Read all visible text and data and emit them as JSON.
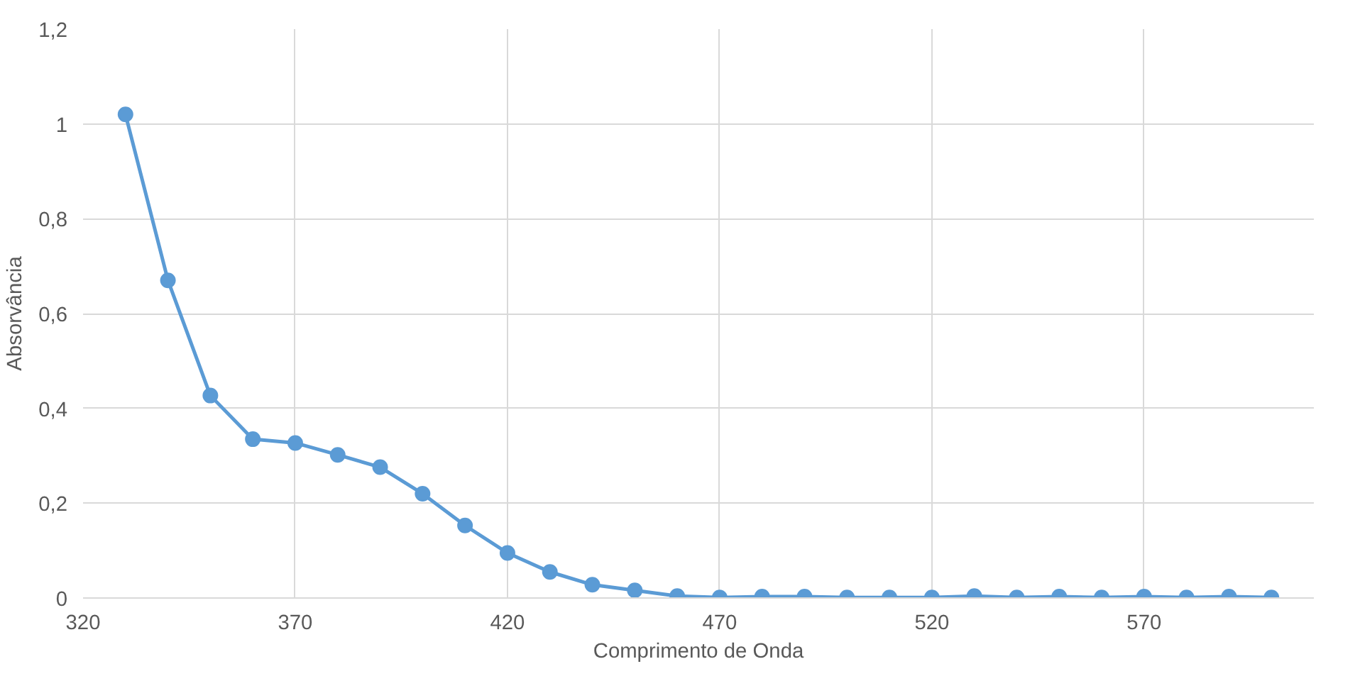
{
  "chart_data": {
    "type": "line",
    "xlabel": "Comprimento de Onda",
    "ylabel": "Absorvância",
    "x": [
      330,
      340,
      350,
      360,
      370,
      380,
      390,
      400,
      410,
      420,
      430,
      440,
      450,
      460,
      470,
      480,
      490,
      500,
      510,
      520,
      530,
      540,
      550,
      560,
      570,
      580,
      590,
      600
    ],
    "series": [
      {
        "color": "#5b9bd5",
        "values": [
          1.02,
          0.67,
          0.427,
          0.335,
          0.327,
          0.302,
          0.276,
          0.22,
          0.153,
          0.095,
          0.055,
          0.028,
          0.016,
          0.004,
          0.001,
          0.003,
          0.003,
          0.001,
          0.001,
          0.001,
          0.004,
          0.001,
          0.003,
          0.001,
          0.003,
          0.001,
          0.003,
          0.001
        ]
      }
    ],
    "xlim": [
      320,
      610
    ],
    "xticks": [
      320,
      370,
      420,
      470,
      520,
      570
    ],
    "ylim": [
      0,
      1.2
    ],
    "yticks": [
      0,
      {
        "value": 0.2,
        "label": "0,2"
      },
      {
        "value": 0.4,
        "label": "0,4"
      },
      {
        "value": 0.6,
        "label": "0,6"
      },
      {
        "value": 0.8,
        "label": "0,8"
      },
      1,
      {
        "value": 1.2,
        "label": "1,2"
      }
    ],
    "grid": true,
    "marker": "circle",
    "line_style": "solid"
  }
}
